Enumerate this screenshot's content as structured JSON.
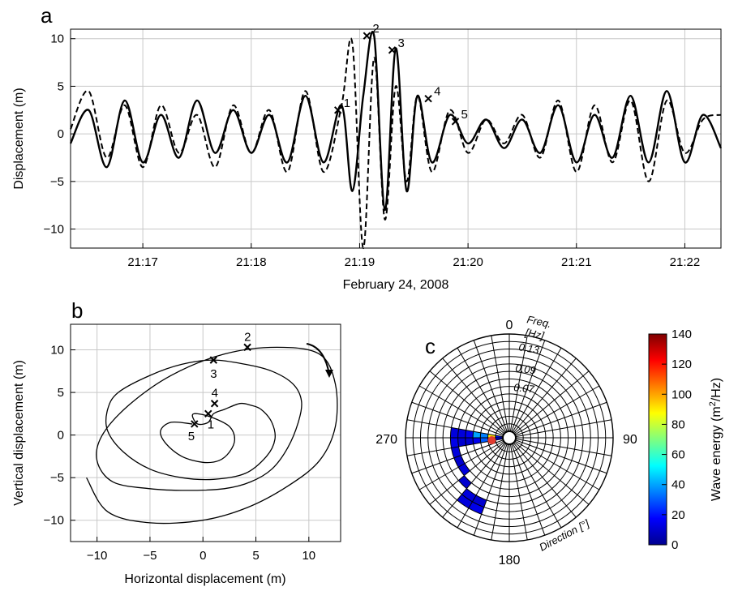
{
  "chart_data": [
    {
      "type": "line",
      "panel": "a",
      "xlabel": "February 24, 2008",
      "ylabel": "Displacement (m)",
      "xlim": [
        "21:16:20",
        "21:22:20"
      ],
      "ylim": [
        -12,
        11
      ],
      "xticks": [
        "21:17",
        "21:18",
        "21:19",
        "21:20",
        "21:21",
        "21:22"
      ],
      "yticks": [
        10,
        5,
        0,
        -5,
        -10
      ],
      "grid": true,
      "series": [
        {
          "style": "solid",
          "x": [
            "21:16:20",
            "21:16:30",
            "21:16:40",
            "21:16:50",
            "21:17:00",
            "21:17:10",
            "21:17:20",
            "21:17:30",
            "21:17:40",
            "21:17:50",
            "21:18:00",
            "21:18:10",
            "21:18:20",
            "21:18:30",
            "21:18:40",
            "21:18:50",
            "21:18:56",
            "21:19:02",
            "21:19:08",
            "21:19:14",
            "21:19:20",
            "21:19:26",
            "21:19:32",
            "21:19:40",
            "21:19:50",
            "21:20:00",
            "21:20:10",
            "21:20:20",
            "21:20:30",
            "21:20:40",
            "21:20:50",
            "21:21:00",
            "21:21:10",
            "21:21:20",
            "21:21:30",
            "21:21:40",
            "21:21:50",
            "21:22:00",
            "21:22:10",
            "21:22:20"
          ],
          "y": [
            -1,
            2.5,
            -3.5,
            3.5,
            -3,
            2,
            -2.5,
            3.5,
            -2,
            2.5,
            -2,
            2,
            -3,
            4,
            -3,
            3,
            -6,
            4,
            10.3,
            -8,
            9,
            -6,
            4,
            -3,
            2,
            -1,
            1.5,
            -1.5,
            1.5,
            -2,
            3,
            -3,
            2,
            -2.5,
            4,
            -3,
            4.5,
            -3,
            2,
            -1.5
          ]
        },
        {
          "style": "dashed",
          "x": [
            "21:16:20",
            "21:16:30",
            "21:16:40",
            "21:16:50",
            "21:17:00",
            "21:17:10",
            "21:17:20",
            "21:17:30",
            "21:17:40",
            "21:17:50",
            "21:18:00",
            "21:18:10",
            "21:18:20",
            "21:18:30",
            "21:18:40",
            "21:18:50",
            "21:18:56",
            "21:19:02",
            "21:19:08",
            "21:19:14",
            "21:19:20",
            "21:19:26",
            "21:19:32",
            "21:19:40",
            "21:19:50",
            "21:20:00",
            "21:20:10",
            "21:20:20",
            "21:20:30",
            "21:20:40",
            "21:20:50",
            "21:21:00",
            "21:21:10",
            "21:21:20",
            "21:21:30",
            "21:21:40",
            "21:21:50",
            "21:22:00",
            "21:22:10",
            "21:22:20"
          ],
          "y": [
            0.5,
            4.5,
            -2.5,
            3,
            -3.5,
            3,
            -2,
            2,
            -3.5,
            3,
            -2,
            2.5,
            -4,
            4.5,
            -4,
            3,
            9.5,
            -12,
            8,
            -9,
            5,
            -5,
            4,
            -4,
            2.5,
            -2,
            1.5,
            -1,
            2,
            -2.5,
            3.5,
            -4,
            3,
            -3,
            3.5,
            -5,
            3.5,
            -2,
            1.5,
            2
          ]
        }
      ],
      "markers": [
        {
          "label": "1",
          "x": "21:18:48",
          "y": 2.5
        },
        {
          "label": "2",
          "x": "21:19:04",
          "y": 10.3
        },
        {
          "label": "3",
          "x": "21:19:18",
          "y": 8.8
        },
        {
          "label": "4",
          "x": "21:19:38",
          "y": 3.7
        },
        {
          "label": "5",
          "x": "21:19:53",
          "y": 1.3
        }
      ]
    },
    {
      "type": "line",
      "panel": "b",
      "xlabel": "Horizontal displacement (m)",
      "ylabel": "Vertical displacement (m)",
      "xlim": [
        -12.5,
        13
      ],
      "ylim": [
        -12.5,
        13
      ],
      "xticks": [
        -10,
        -5,
        0,
        5,
        10
      ],
      "yticks": [
        10,
        5,
        0,
        -5,
        -10
      ],
      "grid": true,
      "x": [
        -1,
        -3,
        -4,
        -3.5,
        -2,
        0,
        1.5,
        2.5,
        3,
        2.5,
        1,
        -0.5,
        -1,
        -0.5,
        0.5,
        1,
        2,
        3.5,
        4.5,
        5.5,
        6.5,
        6.8,
        6,
        4,
        1,
        -2,
        -5,
        -7.5,
        -9,
        -9,
        -8,
        -5,
        -2,
        1,
        4,
        6.5,
        8.5,
        9.3,
        9,
        8,
        6.5,
        4.5,
        2,
        -1.5,
        -5,
        -8.5,
        -10,
        -9.5,
        -7,
        -3,
        2,
        7,
        11,
        12.5,
        12.5,
        11,
        8,
        4.2,
        0,
        -5,
        -9,
        -11
      ],
      "y": [
        1.3,
        1.5,
        0.5,
        -1,
        -2.5,
        -3.2,
        -3,
        -2,
        -0.5,
        1,
        2,
        2.5,
        2.3,
        1.3,
        1.5,
        2.5,
        3,
        3.7,
        3.5,
        3,
        1.5,
        -0.5,
        -2.5,
        -4.5,
        -5.2,
        -5,
        -4,
        -2,
        0.5,
        3,
        5,
        7,
        8.3,
        8.8,
        8.3,
        7.5,
        6,
        4,
        1.5,
        -1.5,
        -4,
        -5.5,
        -6.3,
        -6.5,
        -6.3,
        -5.5,
        -3,
        0,
        3.5,
        7,
        9.5,
        10.3,
        9.5,
        6,
        1,
        -3,
        -6,
        -8.5,
        -10,
        -10.3,
        -9,
        -5
      ]
    },
    {
      "type": "heatmap",
      "panel": "c",
      "subtype": "polar-spectrum",
      "radial_label_1": "Freq.",
      "radial_label_2": "[Hz]",
      "angular_label": "Direction [°]",
      "angle_ticks": [
        "0",
        "90",
        "180",
        "270"
      ],
      "freq_ticks": [
        "0.13",
        "0.09",
        "0.07"
      ],
      "colorbar": {
        "label_main": "Wave energy (m",
        "label_sup": "2",
        "label_end": "/Hz)",
        "ticks": [
          0,
          20,
          40,
          60,
          80,
          100,
          120,
          140
        ],
        "range": [
          0,
          140
        ]
      },
      "cells": [
        {
          "dir_start": 270,
          "dir_end": 280,
          "ring": 2,
          "value": 90
        },
        {
          "dir_start": 260,
          "dir_end": 270,
          "ring": 2,
          "value": 130
        },
        {
          "dir_start": 270,
          "dir_end": 280,
          "ring": 1,
          "value": 20
        },
        {
          "dir_start": 260,
          "dir_end": 270,
          "ring": 1,
          "value": 18
        },
        {
          "dir_start": 270,
          "dir_end": 280,
          "ring": 3,
          "value": 35
        },
        {
          "dir_start": 260,
          "dir_end": 270,
          "ring": 3,
          "value": 30
        },
        {
          "dir_start": 270,
          "dir_end": 280,
          "ring": 4,
          "value": 40
        },
        {
          "dir_start": 260,
          "dir_end": 270,
          "ring": 4,
          "value": 15
        },
        {
          "dir_start": 270,
          "dir_end": 280,
          "ring": 5,
          "value": 15
        },
        {
          "dir_start": 260,
          "dir_end": 270,
          "ring": 5,
          "value": 10
        },
        {
          "dir_start": 270,
          "dir_end": 280,
          "ring": 6,
          "value": 12
        },
        {
          "dir_start": 260,
          "dir_end": 270,
          "ring": 6,
          "value": 10
        },
        {
          "dir_start": 270,
          "dir_end": 280,
          "ring": 7,
          "value": 12
        },
        {
          "dir_start": 260,
          "dir_end": 270,
          "ring": 7,
          "value": 14
        },
        {
          "dir_start": 250,
          "dir_end": 260,
          "ring": 7,
          "value": 12
        },
        {
          "dir_start": 240,
          "dir_end": 250,
          "ring": 7,
          "value": 10
        },
        {
          "dir_start": 230,
          "dir_end": 240,
          "ring": 7,
          "value": 12
        },
        {
          "dir_start": 220,
          "dir_end": 230,
          "ring": 8,
          "value": 10
        },
        {
          "dir_start": 210,
          "dir_end": 220,
          "ring": 9,
          "value": 12
        },
        {
          "dir_start": 200,
          "dir_end": 210,
          "ring": 9,
          "value": 10
        },
        {
          "dir_start": 210,
          "dir_end": 220,
          "ring": 10,
          "value": 12
        },
        {
          "dir_start": 200,
          "dir_end": 210,
          "ring": 10,
          "value": 14
        }
      ],
      "peak_marker": {
        "dir": 262,
        "ring": 2
      }
    }
  ],
  "panels": {
    "a": "a",
    "b": "b",
    "c": "c"
  }
}
